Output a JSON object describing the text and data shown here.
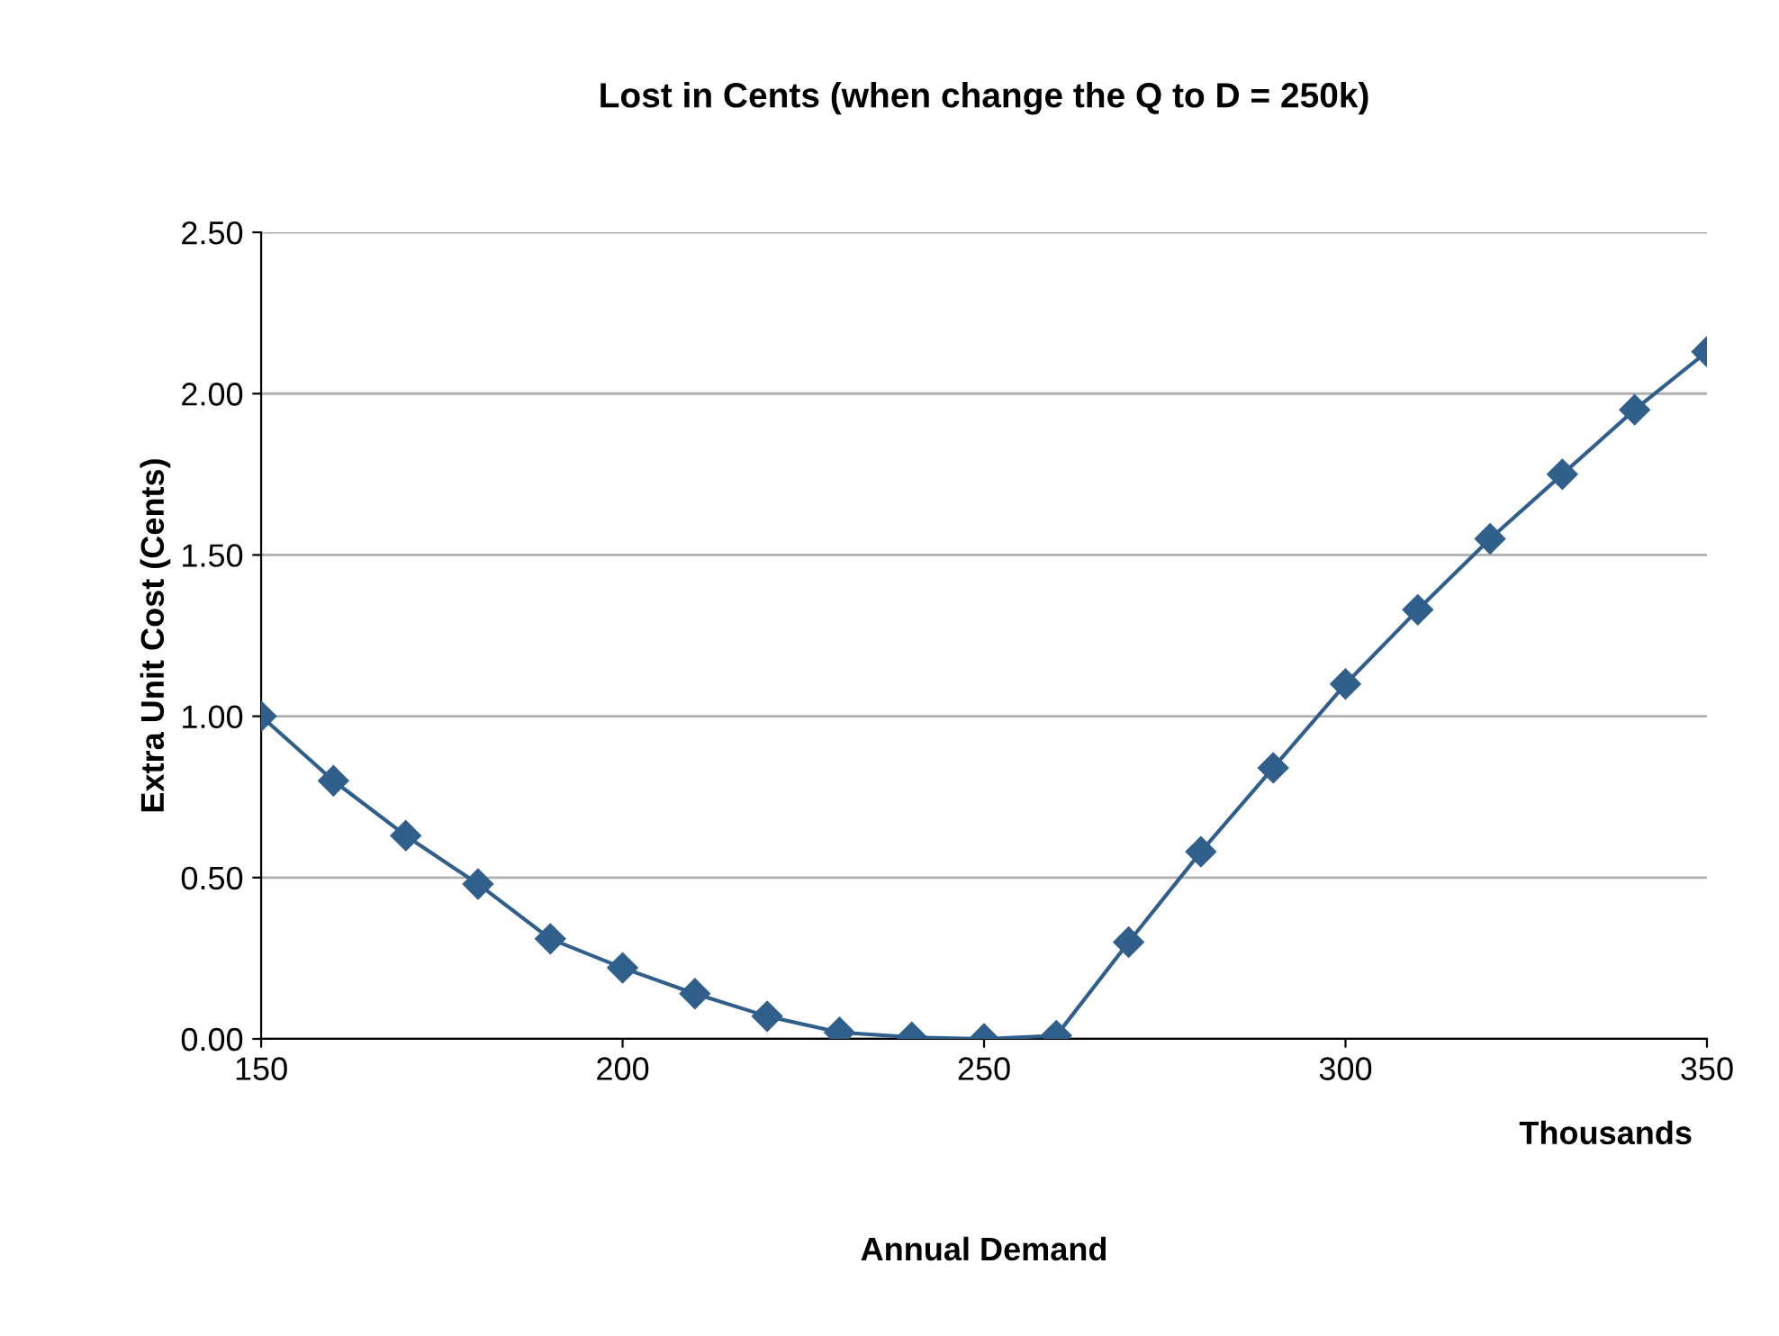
{
  "chart_data": {
    "type": "line",
    "title": "Lost in Cents (when change the Q to D = 250k)",
    "xlabel": "Annual Demand",
    "ylabel": "Extra Unit Cost (Cents)",
    "annotations": [
      "Thousands"
    ],
    "x": [
      150,
      160,
      170,
      180,
      190,
      200,
      210,
      220,
      230,
      240,
      250,
      260,
      270,
      280,
      290,
      300,
      310,
      320,
      330,
      340,
      350
    ],
    "series": [
      {
        "color": "#2f5f8a",
        "values": [
          1.0,
          0.8,
          0.63,
          0.48,
          0.31,
          0.22,
          0.14,
          0.07,
          0.02,
          0.005,
          0.0,
          0.01,
          0.3,
          0.58,
          0.84,
          1.1,
          1.33,
          1.55,
          1.75,
          1.95,
          2.13
        ]
      }
    ],
    "xlim": [
      150,
      350
    ],
    "xticks": [
      150,
      200,
      250,
      300,
      350
    ],
    "ylim": [
      0,
      2.5
    ],
    "yticks": [
      {
        "value": 0,
        "label": "0.00"
      },
      {
        "value": 0.5,
        "label": "0.50"
      },
      {
        "value": 1,
        "label": "1.00"
      },
      {
        "value": 1.5,
        "label": "1.50"
      },
      {
        "value": 2,
        "label": "2.00"
      },
      {
        "value": 2.5,
        "label": "2.50"
      }
    ],
    "grid": "y",
    "marker": "diamond",
    "line_style": "solid",
    "legend": false
  }
}
